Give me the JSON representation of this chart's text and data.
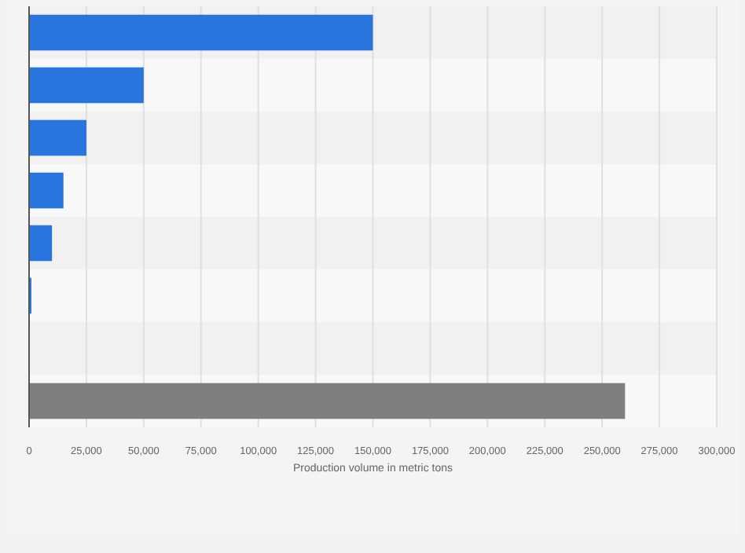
{
  "chart_data": {
    "type": "bar",
    "orientation": "horizontal",
    "categories": [
      null,
      null,
      null,
      null,
      null,
      null,
      null,
      null
    ],
    "values": [
      150000,
      50000,
      25000,
      15000,
      10000,
      1000,
      0,
      260000
    ],
    "colors": [
      "#2876dd",
      "#2876dd",
      "#2876dd",
      "#2876dd",
      "#2876dd",
      "#2876dd",
      "#2876dd",
      "#7f7f7f"
    ],
    "xlim": [
      0,
      300000
    ],
    "xticks": [
      {
        "value": 0,
        "label": "0"
      },
      {
        "value": 25000,
        "label": "25,000"
      },
      {
        "value": 50000,
        "label": "50,000"
      },
      {
        "value": 75000,
        "label": "75,000"
      },
      {
        "value": 100000,
        "label": "100,000"
      },
      {
        "value": 125000,
        "label": "125,000"
      },
      {
        "value": 150000,
        "label": "150,000"
      },
      {
        "value": 175000,
        "label": "175,000"
      },
      {
        "value": 200000,
        "label": "200,000"
      },
      {
        "value": 225000,
        "label": "225,000"
      },
      {
        "value": 250000,
        "label": "250,000"
      },
      {
        "value": 275000,
        "label": "275,000"
      },
      {
        "value": 300000,
        "label": "300,000"
      }
    ],
    "xlabel": "Production volume in metric tons",
    "grid": "x"
  }
}
